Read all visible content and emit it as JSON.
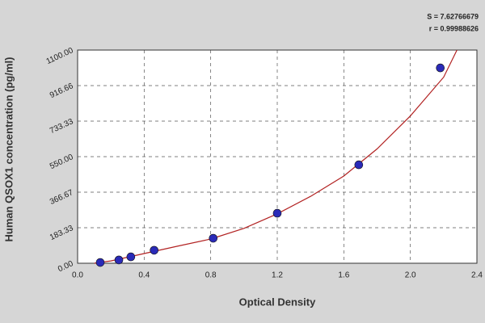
{
  "chart_data": {
    "type": "scatter",
    "x_label": "Optical Density",
    "y_label": "Human QSOX1 concentration (pg/ml)",
    "annotations": [
      "S = 7.62766679",
      "r = 0.99988626"
    ],
    "xlim": [
      0,
      2.4
    ],
    "xticks": [
      {
        "value": 0,
        "label": "0.0"
      },
      0.4,
      0.8,
      1.2,
      1.6,
      {
        "value": 2,
        "label": "2.0"
      },
      2.4
    ],
    "ylim": [
      0,
      1100
    ],
    "yticks": [
      {
        "value": 0,
        "label": "0.00"
      },
      {
        "value": 183.33,
        "label": "183.33"
      },
      {
        "value": 366.67,
        "label": "366.67"
      },
      {
        "value": 550,
        "label": "550.00"
      },
      {
        "value": 733.33,
        "label": "733.33"
      },
      {
        "value": 916.66,
        "label": "916.66"
      },
      {
        "value": 1100,
        "label": "1100.00"
      }
    ],
    "grid": true,
    "series": [
      {
        "type": "line",
        "color": "#b22222",
        "x": [
          0.1,
          0.2,
          0.4,
          0.6,
          0.8,
          1.0,
          1.2,
          1.4,
          1.6,
          1.8,
          2.0,
          2.2,
          2.28
        ],
        "values": [
          0,
          12,
          50,
          88,
          125,
          180,
          255,
          345,
          450,
          590,
          760,
          960,
          1100
        ]
      },
      {
        "type": "scatter",
        "color": "#2a2ab8",
        "x": [
          0.136,
          0.248,
          0.32,
          0.46,
          0.815,
          1.2,
          1.69,
          2.18
        ],
        "values": [
          4,
          17,
          33,
          67,
          129,
          258,
          508,
          1008
        ]
      }
    ]
  }
}
